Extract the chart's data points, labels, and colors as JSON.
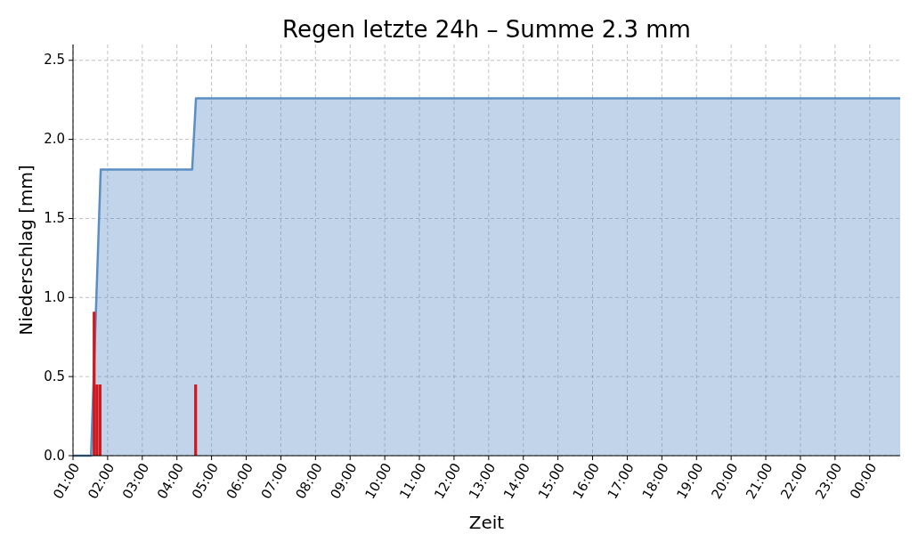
{
  "chart_data": {
    "type": "area",
    "title": "Regen letzte 24h – Summe 2.3 mm",
    "xlabel": "Zeit",
    "ylabel": "Niederschlag [mm]",
    "series": [
      {
        "color": "#5b8fc4",
        "x": [
          1,
          1.52,
          1.8,
          4.44,
          4.55,
          24.88
        ],
        "values": [
          0,
          0,
          1.81,
          1.81,
          2.26,
          2.26
        ]
      },
      {
        "type": "bar",
        "color": "#d0181f",
        "x": [
          1.61,
          1.69,
          1.78,
          4.54
        ],
        "values": [
          0.91,
          0.45,
          0.45,
          0.45
        ]
      }
    ],
    "xlim": [
      1,
      24.88
    ],
    "xticks": [
      {
        "value": 1,
        "label": "01:00"
      },
      {
        "value": 2,
        "label": "02:00"
      },
      {
        "value": 3,
        "label": "03:00"
      },
      {
        "value": 4,
        "label": "04:00"
      },
      {
        "value": 5,
        "label": "05:00"
      },
      {
        "value": 6,
        "label": "06:00"
      },
      {
        "value": 7,
        "label": "07:00"
      },
      {
        "value": 8,
        "label": "08:00"
      },
      {
        "value": 9,
        "label": "09:00"
      },
      {
        "value": 10,
        "label": "10:00"
      },
      {
        "value": 11,
        "label": "11:00"
      },
      {
        "value": 12,
        "label": "12:00"
      },
      {
        "value": 13,
        "label": "13:00"
      },
      {
        "value": 14,
        "label": "14:00"
      },
      {
        "value": 15,
        "label": "15:00"
      },
      {
        "value": 16,
        "label": "16:00"
      },
      {
        "value": 17,
        "label": "17:00"
      },
      {
        "value": 18,
        "label": "18:00"
      },
      {
        "value": 19,
        "label": "19:00"
      },
      {
        "value": 20,
        "label": "20:00"
      },
      {
        "value": 21,
        "label": "21:00"
      },
      {
        "value": 22,
        "label": "22:00"
      },
      {
        "value": 23,
        "label": "23:00"
      },
      {
        "value": 24,
        "label": "00:00"
      }
    ],
    "ylim": [
      0,
      2.6
    ],
    "yticks": [
      {
        "value": 0,
        "label": "0.0"
      },
      0.5,
      {
        "value": 1,
        "label": "1.0"
      },
      1.5,
      {
        "value": 2,
        "label": "2.0"
      },
      2.5
    ],
    "grid": true
  }
}
